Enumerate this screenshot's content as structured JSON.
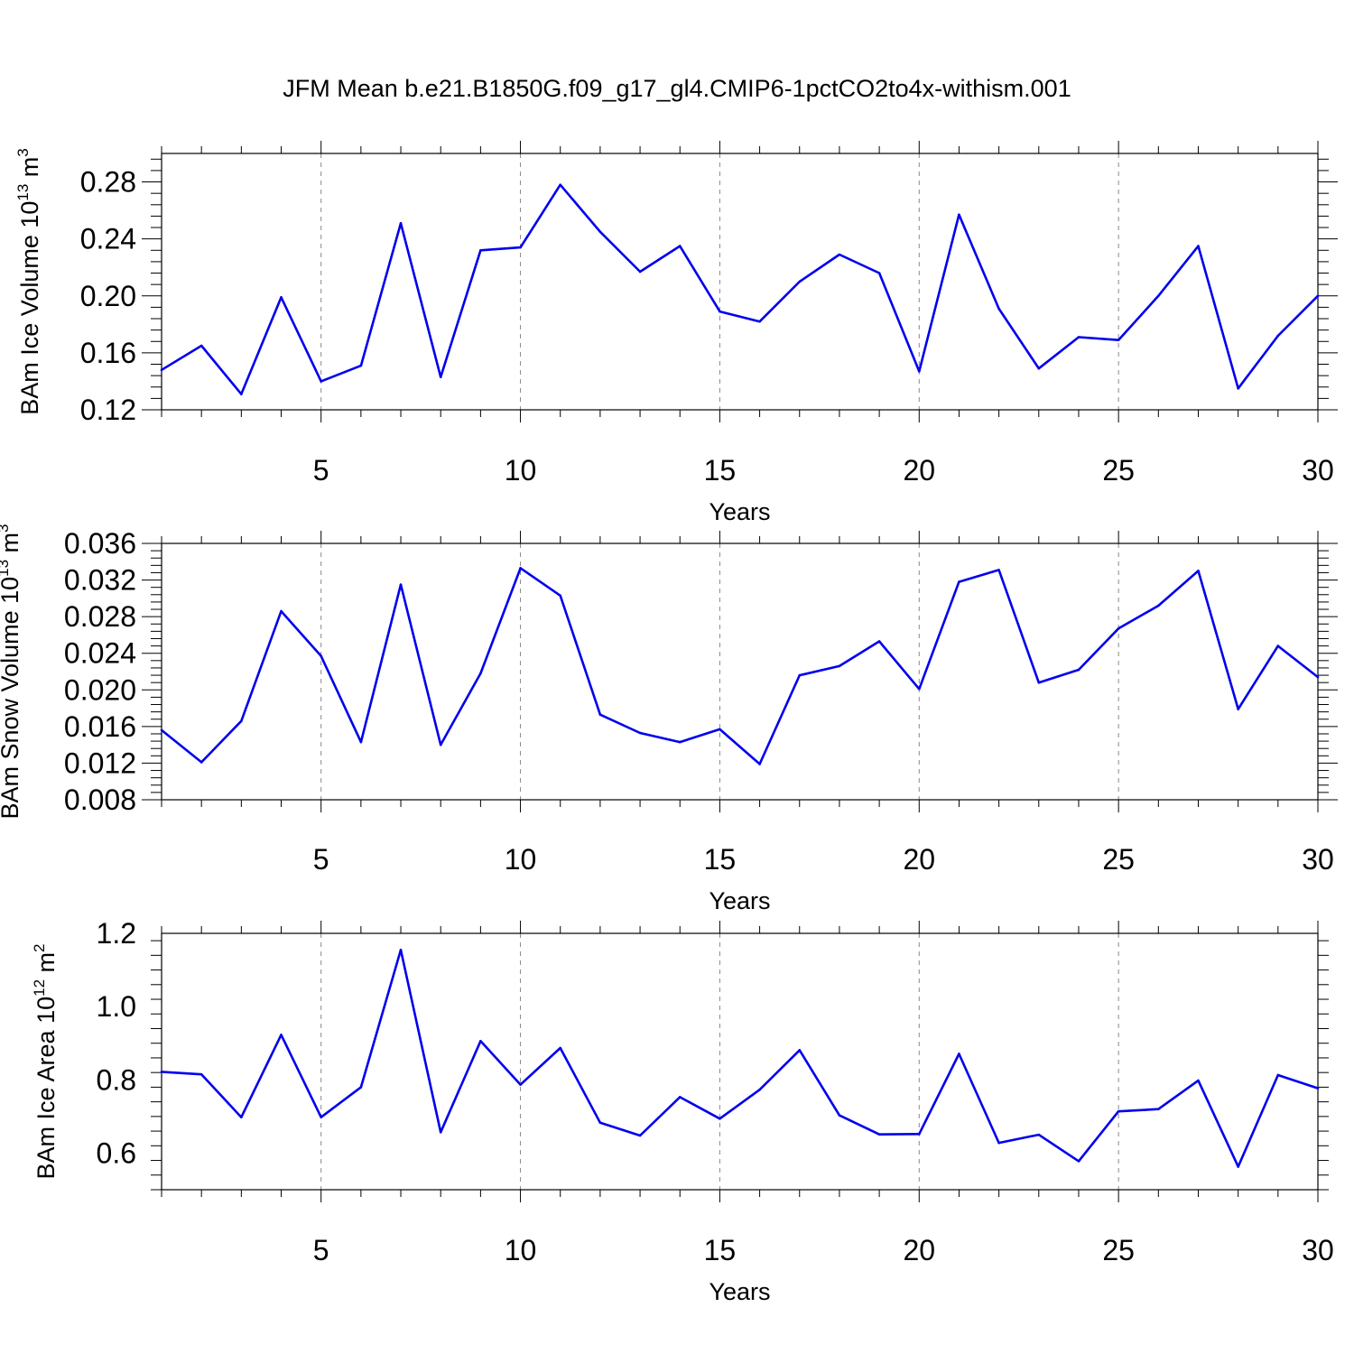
{
  "title": "JFM Mean b.e21.B1850G.f09_g17_gl4.CMIP6-1pctCO2to4x-withism.001",
  "colors": {
    "line": "#0000ee",
    "axis": "#000000",
    "grid": "#888888",
    "background": "#ffffff"
  },
  "chart_data": [
    {
      "type": "line",
      "xlabel": "Years",
      "ylabel": "BAm Ice Volume",
      "ylabel_unit_base": "10",
      "ylabel_unit_exp": "13",
      "ylabel_unit_m": "m",
      "ylabel_unit_mexp": "3",
      "xlim": [
        1,
        30
      ],
      "ylim": [
        0.12,
        0.3
      ],
      "xticks": [
        5,
        10,
        15,
        20,
        25,
        30
      ],
      "xtick_labels": [
        "5",
        "10",
        "15",
        "20",
        "25",
        "30"
      ],
      "yticks": [
        0.12,
        0.16,
        0.2,
        0.24,
        0.28
      ],
      "ytick_labels": [
        "0.12",
        "0.16",
        "0.20",
        "0.24",
        "0.28"
      ],
      "grid": "vertical dashed at major x ticks",
      "x": [
        1,
        2,
        3,
        4,
        5,
        6,
        7,
        8,
        9,
        10,
        11,
        12,
        13,
        14,
        15,
        16,
        17,
        18,
        19,
        20,
        21,
        22,
        23,
        24,
        25,
        26,
        27,
        28,
        29,
        30
      ],
      "values": [
        0.148,
        0.165,
        0.131,
        0.199,
        0.14,
        0.151,
        0.251,
        0.143,
        0.232,
        0.234,
        0.278,
        0.245,
        0.217,
        0.235,
        0.189,
        0.182,
        0.21,
        0.229,
        0.216,
        0.147,
        0.257,
        0.191,
        0.149,
        0.171,
        0.169,
        0.2,
        0.235,
        0.135,
        0.172,
        0.2
      ]
    },
    {
      "type": "line",
      "xlabel": "Years",
      "ylabel": "BAm Snow Volume",
      "ylabel_unit_base": "10",
      "ylabel_unit_exp": "13",
      "ylabel_unit_m": "m",
      "ylabel_unit_mexp": "3",
      "xlim": [
        1,
        30
      ],
      "ylim": [
        0.008,
        0.036
      ],
      "xticks": [
        5,
        10,
        15,
        20,
        25,
        30
      ],
      "xtick_labels": [
        "5",
        "10",
        "15",
        "20",
        "25",
        "30"
      ],
      "yticks": [
        0.008,
        0.012,
        0.016,
        0.02,
        0.024,
        0.028,
        0.032,
        0.036
      ],
      "ytick_labels": [
        "0.008",
        "0.012",
        "0.016",
        "0.020",
        "0.024",
        "0.028",
        "0.032",
        "0.036"
      ],
      "grid": "vertical dashed at major x ticks",
      "x": [
        1,
        2,
        3,
        4,
        5,
        6,
        7,
        8,
        9,
        10,
        11,
        12,
        13,
        14,
        15,
        16,
        17,
        18,
        19,
        20,
        21,
        22,
        23,
        24,
        25,
        26,
        27,
        28,
        29,
        30
      ],
      "values": [
        0.0156,
        0.0121,
        0.0166,
        0.0286,
        0.0237,
        0.0143,
        0.0315,
        0.014,
        0.0218,
        0.0333,
        0.0303,
        0.0173,
        0.0153,
        0.0143,
        0.0157,
        0.0119,
        0.0216,
        0.0226,
        0.0253,
        0.0201,
        0.0318,
        0.0331,
        0.0208,
        0.0222,
        0.0267,
        0.0292,
        0.033,
        0.0179,
        0.0248,
        0.0214
      ]
    },
    {
      "type": "line",
      "xlabel": "Years",
      "ylabel": "BAm Ice Area",
      "ylabel_unit_base": "10",
      "ylabel_unit_exp": "12",
      "ylabel_unit_m": "m",
      "ylabel_unit_mexp": "2",
      "xlim": [
        1,
        30
      ],
      "ylim": [
        0.5,
        1.2
      ],
      "xticks": [
        5,
        10,
        15,
        20,
        25,
        30
      ],
      "xtick_labels": [
        "5",
        "10",
        "15",
        "20",
        "25",
        "30"
      ],
      "yticks": [
        0.6,
        0.8,
        1.0,
        1.2
      ],
      "ytick_labels": [
        "0.6",
        "0.8",
        "1.0",
        "1.2"
      ],
      "grid": "vertical dashed at major x ticks",
      "x": [
        1,
        2,
        3,
        4,
        5,
        6,
        7,
        8,
        9,
        10,
        11,
        12,
        13,
        14,
        15,
        16,
        17,
        18,
        19,
        20,
        21,
        22,
        23,
        24,
        25,
        26,
        27,
        28,
        29,
        30
      ],
      "values": [
        0.822,
        0.815,
        0.698,
        0.923,
        0.698,
        0.78,
        1.155,
        0.657,
        0.906,
        0.787,
        0.887,
        0.683,
        0.648,
        0.753,
        0.694,
        0.773,
        0.881,
        0.703,
        0.651,
        0.652,
        0.871,
        0.628,
        0.65,
        0.578,
        0.714,
        0.72,
        0.798,
        0.563,
        0.813,
        0.777
      ]
    }
  ]
}
